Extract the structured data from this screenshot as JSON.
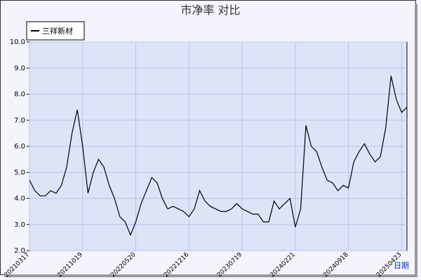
{
  "chart_data": {
    "type": "line",
    "title": "市净率  对比",
    "x_label": "日期",
    "legend": "upper left",
    "grid": true,
    "categories": [
      "20210317",
      null,
      null,
      null,
      null,
      null,
      null,
      null,
      null,
      null,
      "20211019",
      null,
      null,
      null,
      null,
      null,
      null,
      null,
      null,
      null,
      "20220520",
      null,
      null,
      null,
      null,
      null,
      null,
      null,
      null,
      null,
      "20221216",
      null,
      null,
      null,
      null,
      null,
      null,
      null,
      null,
      null,
      "20230719",
      null,
      null,
      null,
      null,
      null,
      null,
      null,
      null,
      null,
      "20240221",
      null,
      null,
      null,
      null,
      null,
      null,
      null,
      null,
      null,
      "20240918",
      null,
      null,
      null,
      null,
      null,
      null,
      null,
      null,
      null,
      "20250423",
      null
    ],
    "series": [
      {
        "name": "三祥新材",
        "color": "#000000",
        "values": [
          4.7,
          4.3,
          4.1,
          4.1,
          4.3,
          4.2,
          4.5,
          5.2,
          6.5,
          7.4,
          6.0,
          4.2,
          5.0,
          5.5,
          5.2,
          4.5,
          4.0,
          3.3,
          3.1,
          2.6,
          3.1,
          3.8,
          4.3,
          4.8,
          4.6,
          4.0,
          3.6,
          3.7,
          3.6,
          3.5,
          3.3,
          3.6,
          4.3,
          3.9,
          3.7,
          3.6,
          3.5,
          3.5,
          3.6,
          3.8,
          3.6,
          3.5,
          3.4,
          3.4,
          3.1,
          3.1,
          3.9,
          3.6,
          3.8,
          4.0,
          2.9,
          3.6,
          6.8,
          6.0,
          5.8,
          5.2,
          4.7,
          4.6,
          4.3,
          4.5,
          4.4,
          5.4,
          5.8,
          6.1,
          5.7,
          5.4,
          5.6,
          6.7,
          8.7,
          7.8,
          7.3,
          7.5
        ]
      }
    ],
    "ylim": [
      2.0,
      10.0
    ],
    "yticks": [
      {
        "value": 2,
        "label": "2.0"
      },
      {
        "value": 3,
        "label": "3.0"
      },
      {
        "value": 4,
        "label": "4.0"
      },
      {
        "value": 5,
        "label": "5.0"
      },
      {
        "value": 6,
        "label": "6.0"
      },
      {
        "value": 7,
        "label": "7.0"
      },
      {
        "value": 8,
        "label": "8.0"
      },
      {
        "value": 9,
        "label": "9.0"
      },
      {
        "value": 10,
        "label": "10.0"
      }
    ]
  }
}
